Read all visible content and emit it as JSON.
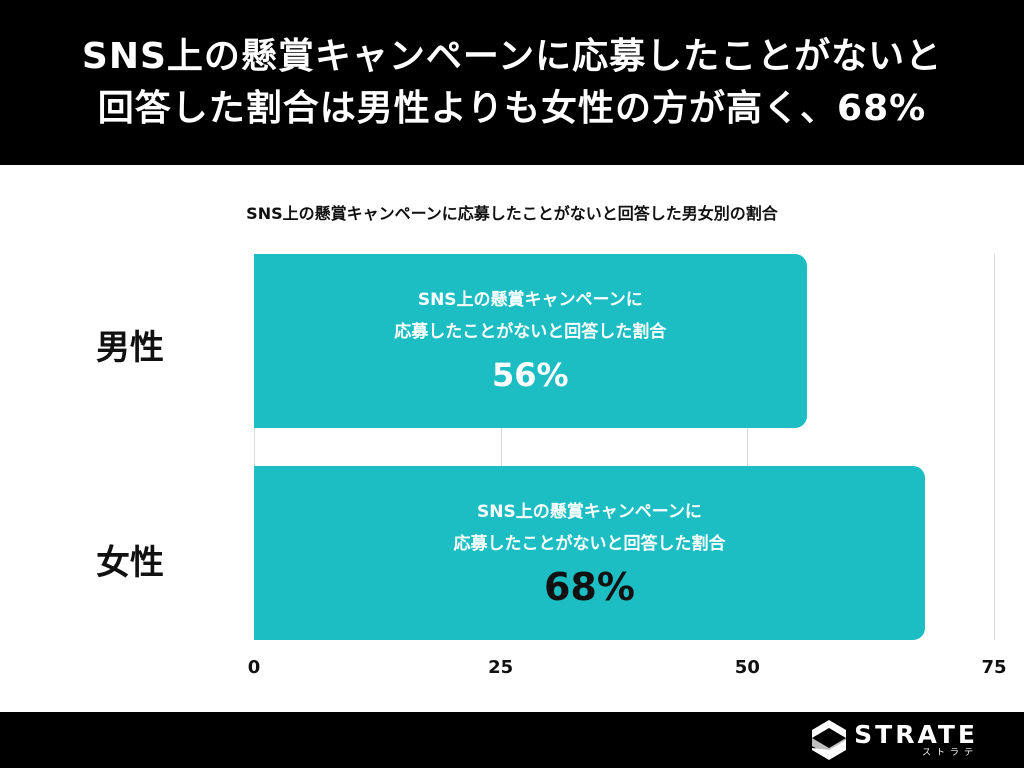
{
  "header": {
    "title_line1": "SNS上の懸賞キャンペーンに応募したことがないと",
    "title_line2": "回答した割合は男性よりも女性の方が高く、68%"
  },
  "chart_data": {
    "type": "bar",
    "orientation": "horizontal",
    "title": "SNS上の懸賞キャンペーンに応募したことがないと回答した男女別の割合",
    "categories": [
      "男性",
      "女性"
    ],
    "values": [
      56,
      68
    ],
    "bar_label_line1": "SNS上の懸賞キャンペーンに",
    "bar_label_line2": "応募したことがないと回答した割合",
    "value_labels": [
      "56%",
      "68%"
    ],
    "xlim": [
      0,
      75
    ],
    "xticks": [
      0,
      25,
      50,
      75
    ],
    "xtick_labels": [
      "0",
      "25",
      "50",
      "75"
    ],
    "grid": true,
    "bar_color": "#1cbec3"
  },
  "footer": {
    "logo_text": "STRATE",
    "logo_subtext": "ストラテ"
  }
}
